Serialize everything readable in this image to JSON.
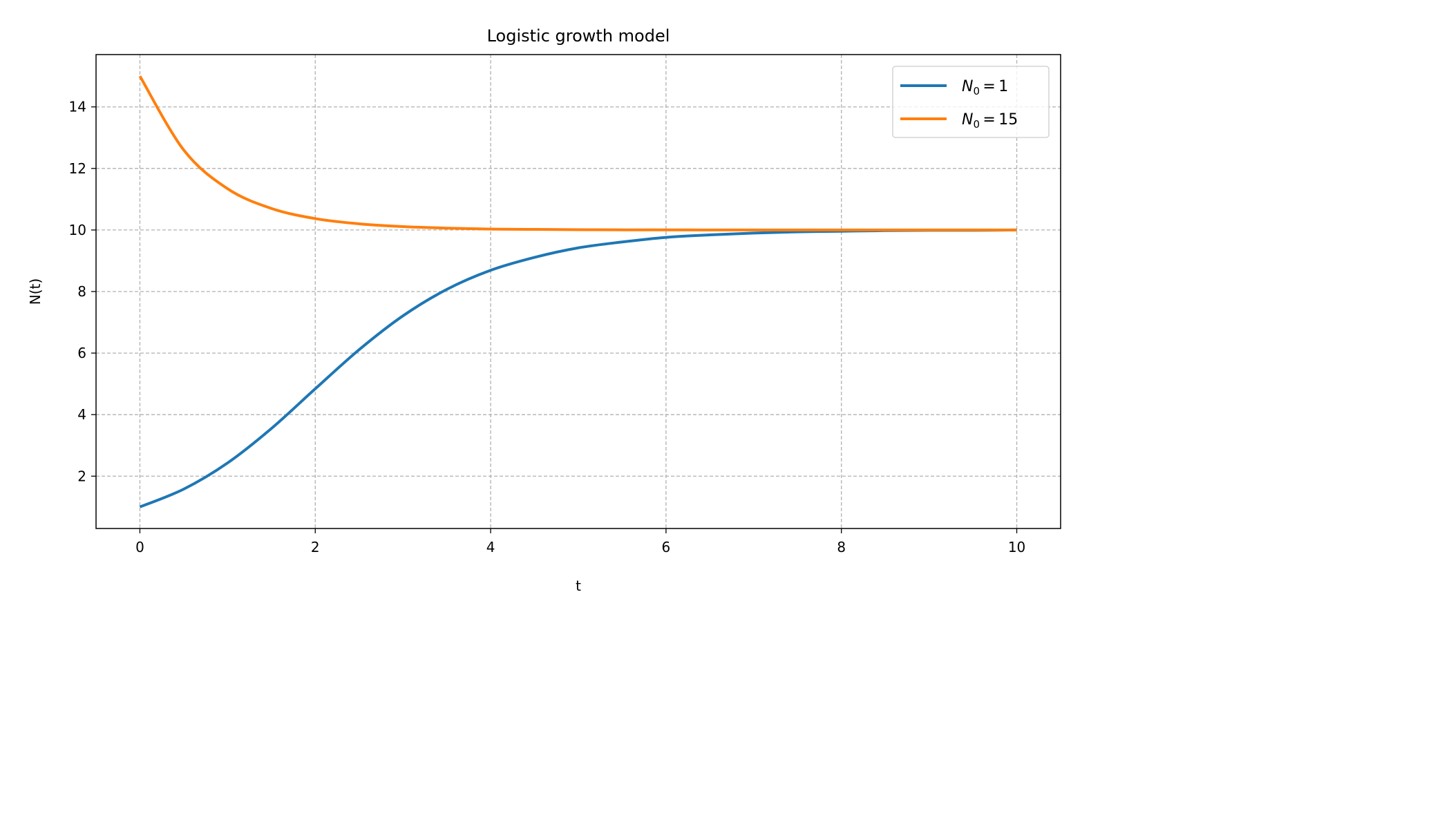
{
  "chart_data": {
    "type": "line",
    "title": "Logistic growth model",
    "xlabel": "t",
    "ylabel": "N(t)",
    "xlim": [
      -0.5,
      10.5
    ],
    "ylim": [
      0.3,
      15.7
    ],
    "xticks": [
      0,
      2,
      4,
      6,
      8,
      10
    ],
    "yticks": [
      2,
      4,
      6,
      8,
      10,
      12,
      14
    ],
    "grid": true,
    "legend_position": "upper right",
    "x": [
      0,
      0.5,
      1,
      1.5,
      2,
      2.5,
      3,
      3.5,
      4,
      4.5,
      5,
      5.5,
      6,
      6.5,
      7,
      7.5,
      8,
      8.5,
      9,
      9.5,
      10
    ],
    "series": [
      {
        "name_parts": {
          "symbol": "N",
          "subscript": "0",
          "value": "1"
        },
        "color": "#1f77b4",
        "values": [
          1.0,
          1.58,
          2.43,
          3.55,
          4.84,
          6.11,
          7.21,
          8.07,
          8.69,
          9.11,
          9.42,
          9.61,
          9.76,
          9.84,
          9.9,
          9.94,
          9.96,
          9.98,
          9.99,
          9.99,
          10.0
        ]
      },
      {
        "name_parts": {
          "symbol": "N",
          "subscript": "0",
          "value": "15"
        },
        "color": "#ff7f0e",
        "values": [
          15.0,
          12.6,
          11.34,
          10.7,
          10.37,
          10.2,
          10.11,
          10.06,
          10.03,
          10.02,
          10.01,
          10.005,
          10.003,
          10.002,
          10.001,
          10.001,
          10.0,
          10.0,
          10.0,
          10.0,
          10.0
        ]
      }
    ]
  }
}
